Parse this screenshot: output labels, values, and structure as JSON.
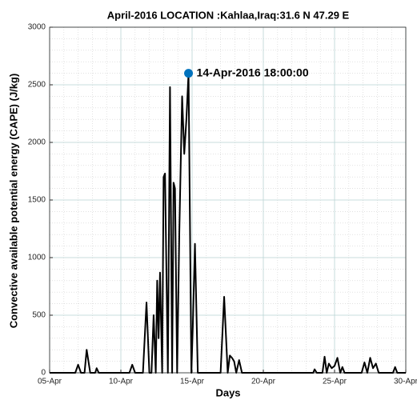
{
  "chart_data": {
    "type": "line",
    "title": "April-2016 LOCATION :Kahlaa,Iraq:31.6 N 47.29 E",
    "xlabel": "Days",
    "ylabel": "Convective available potential energy (CAPE) (J/kg)",
    "xlim": [
      5,
      30
    ],
    "xticks": [
      {
        "value": 5,
        "label": "05-Apr"
      },
      {
        "value": 10,
        "label": "10-Apr"
      },
      {
        "value": 15,
        "label": "15-Apr"
      },
      {
        "value": 20,
        "label": "20-Apr"
      },
      {
        "value": 25,
        "label": "25-Apr"
      },
      {
        "value": 30,
        "label": "30-Apr"
      }
    ],
    "ylim": [
      0,
      3000
    ],
    "yticks": [
      0,
      500,
      1000,
      1500,
      2000,
      2500,
      3000
    ],
    "grid": true,
    "minor_grid": true,
    "series": [
      {
        "color": "#000000",
        "x": [
          5,
          6.8,
          7.0,
          7.2,
          7.45,
          7.6,
          7.85,
          8.2,
          8.3,
          8.45,
          10.6,
          10.8,
          11.0,
          11.55,
          11.8,
          12.0,
          12.15,
          12.3,
          12.45,
          12.55,
          12.65,
          12.75,
          12.9,
          13.0,
          13.1,
          13.3,
          13.45,
          13.6,
          13.7,
          13.8,
          13.95,
          14.1,
          14.3,
          14.45,
          14.6,
          14.75,
          14.95,
          15.05,
          15.2,
          15.4,
          17.0,
          17.25,
          17.5,
          17.65,
          17.8,
          17.95,
          18.1,
          18.3,
          18.5,
          23.5,
          23.6,
          23.75,
          24.15,
          24.3,
          24.45,
          24.6,
          24.8,
          25.0,
          25.2,
          25.4,
          25.55,
          25.7,
          26.9,
          27.1,
          27.3,
          27.5,
          27.7,
          27.9,
          28.1,
          29.1,
          29.25,
          29.4,
          30
        ],
        "values": [
          0,
          0,
          70,
          0,
          0,
          200,
          0,
          0,
          40,
          0,
          0,
          70,
          0,
          0,
          610,
          0,
          0,
          500,
          0,
          800,
          300,
          870,
          0,
          1700,
          1730,
          0,
          2480,
          0,
          1650,
          1600,
          0,
          1200,
          2400,
          1900,
          2200,
          2600,
          0,
          400,
          1120,
          0,
          0,
          660,
          0,
          150,
          130,
          100,
          0,
          110,
          0,
          0,
          30,
          0,
          0,
          140,
          0,
          80,
          40,
          60,
          130,
          0,
          50,
          0,
          0,
          90,
          0,
          130,
          40,
          80,
          0,
          0,
          50,
          0,
          0
        ]
      }
    ],
    "annotations": [
      {
        "x": 14.75,
        "y": 2600,
        "text": "14-Apr-2016 18:00:00",
        "color": "#0072bd"
      }
    ]
  }
}
